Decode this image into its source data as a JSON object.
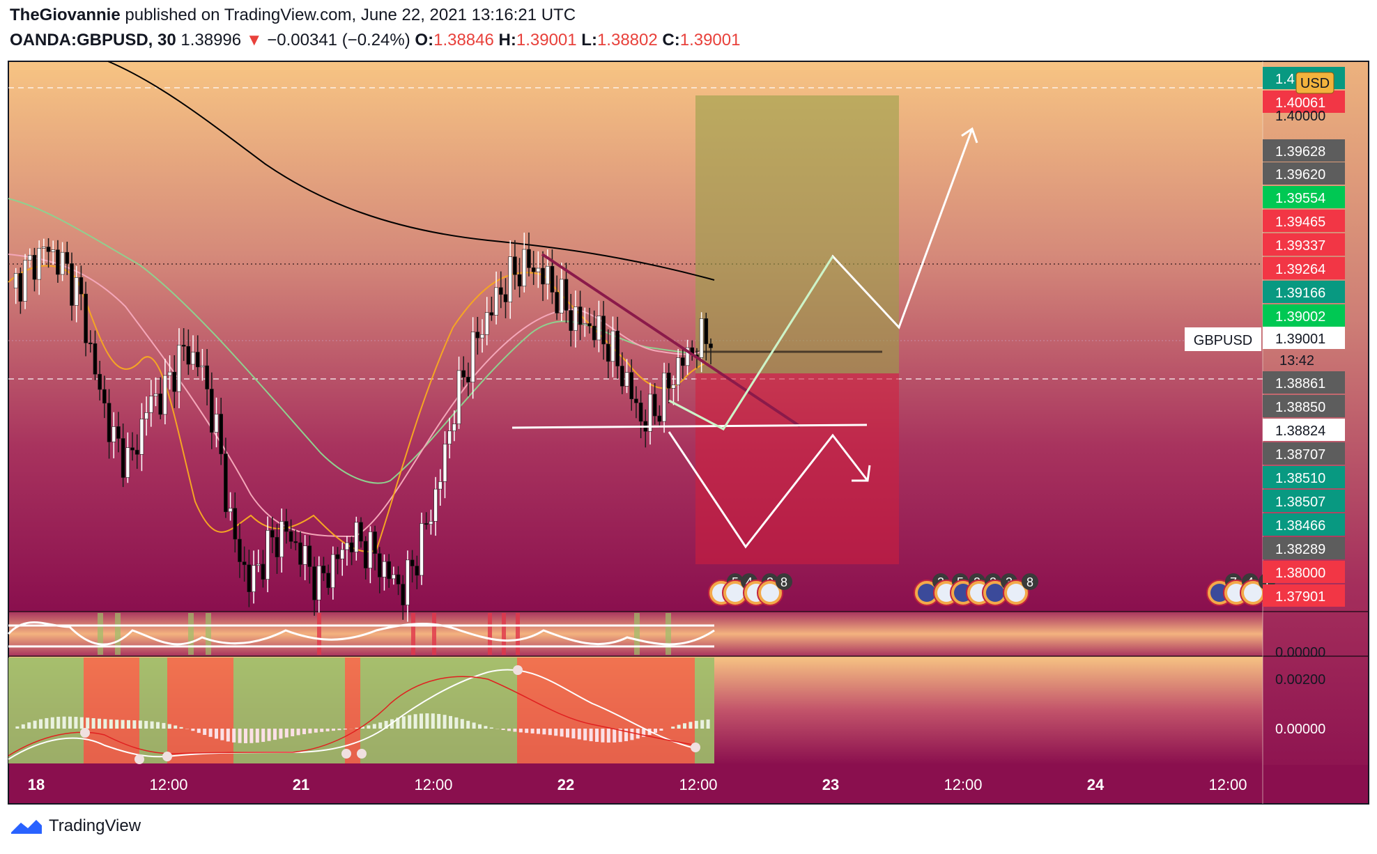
{
  "header": {
    "author": "TheGiovannie",
    "published_text": "published on TradingView.com, June 22, 2021 13:16:21 UTC",
    "symbol": "OANDA:GBPUSD, 30",
    "last": "1.38996",
    "change_arrow": "▼",
    "change": "−0.00341 (−0.24%)",
    "o_label": "O:",
    "o_value": "1.38846",
    "h_label": "H:",
    "h_value": "1.39001",
    "l_label": "L:",
    "l_value": "1.38802",
    "c_label": "C:",
    "c_value": "1.39001"
  },
  "footer": {
    "brand": "TradingView",
    "logo_icon": "tradingview-logo-icon"
  },
  "currency_button": "USD",
  "symbol_tag": "GBPUSD",
  "countdown": "13:42",
  "colors": {
    "bg_top": "#f7c483",
    "bg_bottom": "#8a0f4e",
    "bull": "#ffffff",
    "bear": "#000000",
    "green_tag": "#089981",
    "red_tag": "#f23645",
    "gray_tag": "#5d5d5d",
    "ema_fast": "#f5a623",
    "ema_mid": "#f4a7b9",
    "ema_slow": "#8fd18f",
    "sma_long": "#000000",
    "trendline": "#8b1a4a",
    "target_zone": "#b3a85c",
    "stop_zone": "#c0233f"
  },
  "price_labels": [
    {
      "text": "1.40061",
      "kind": "red"
    },
    {
      "text": "1.40000",
      "kind": "plain"
    },
    {
      "text": "1.39628",
      "kind": "gray"
    },
    {
      "text": "1.39620",
      "kind": "gray"
    },
    {
      "text": "1.39554",
      "kind": "lime"
    },
    {
      "text": "1.39465",
      "kind": "red"
    },
    {
      "text": "1.39337",
      "kind": "red"
    },
    {
      "text": "1.39264",
      "kind": "red"
    },
    {
      "text": "1.39166",
      "kind": "green"
    },
    {
      "text": "1.39002",
      "kind": "lime"
    },
    {
      "text": "1.39001",
      "kind": "white"
    },
    {
      "text": "1.38861",
      "kind": "gray"
    },
    {
      "text": "1.38850",
      "kind": "gray"
    },
    {
      "text": "1.38824",
      "kind": "white"
    },
    {
      "text": "1.38707",
      "kind": "gray"
    },
    {
      "text": "1.38510",
      "kind": "green"
    },
    {
      "text": "1.38507",
      "kind": "green"
    },
    {
      "text": "1.38466",
      "kind": "green"
    },
    {
      "text": "1.38289",
      "kind": "gray"
    },
    {
      "text": "1.38000",
      "kind": "red"
    },
    {
      "text": "1.37901",
      "kind": "red"
    }
  ],
  "top_tag_partial": "1.4",
  "osc_axis": [
    "0.00000"
  ],
  "macd_axis": [
    "0.00200",
    "0.00000"
  ],
  "time_axis": [
    "18",
    "12:00",
    "21",
    "12:00",
    "22",
    "12:00",
    "23",
    "12:00",
    "24",
    "12:00"
  ],
  "event_badges": [
    {
      "flag": "US",
      "count": "5"
    },
    {
      "flag": "US",
      "count": "4"
    },
    {
      "flag": "US",
      "count": "3"
    },
    {
      "flag": "US",
      "count": "8"
    },
    {
      "flag": "UK",
      "count": "3"
    },
    {
      "flag": "US",
      "count": "5"
    },
    {
      "flag": "UK",
      "count": "2"
    },
    {
      "flag": "US",
      "count": "3"
    },
    {
      "flag": "UK",
      "count": "3"
    },
    {
      "flag": "US",
      "count": "8"
    },
    {
      "flag": "UK",
      "count": "7"
    },
    {
      "flag": "US",
      "count": "4"
    },
    {
      "flag": "US",
      "count": "1"
    }
  ],
  "chart_data": {
    "type": "candlestick",
    "symbol": "OANDA:GBPUSD",
    "timeframe": "30",
    "ylim": [
      1.3784,
      1.4012
    ],
    "x": [
      "Jun 18",
      "Jun 21",
      "Jun 22"
    ],
    "key_levels": {
      "horizontal_support": 1.38824,
      "current_price": 1.39001,
      "long_target_top": 1.3995,
      "long_entry": 1.38915,
      "long_stop_bottom": 1.3817,
      "dotted_reference": 1.3918
    },
    "ohlc_path": [
      1.3918,
      1.3926,
      1.3935,
      1.3928,
      1.3915,
      1.388,
      1.3855,
      1.3845,
      1.387,
      1.3875,
      1.3892,
      1.3888,
      1.386,
      1.3815,
      1.3795,
      1.381,
      1.3818,
      1.3808,
      1.3795,
      1.3805,
      1.3815,
      1.381,
      1.38,
      1.3793,
      1.3812,
      1.3835,
      1.387,
      1.3892,
      1.3908,
      1.392,
      1.3928,
      1.3925,
      1.3915,
      1.3905,
      1.3902,
      1.3895,
      1.388,
      1.3862,
      1.387,
      1.3885,
      1.3893,
      1.39
    ],
    "indicators": [
      "EMA fast",
      "EMA mid",
      "EMA slow",
      "SMA 200",
      "Oscillator",
      "MACD"
    ]
  }
}
